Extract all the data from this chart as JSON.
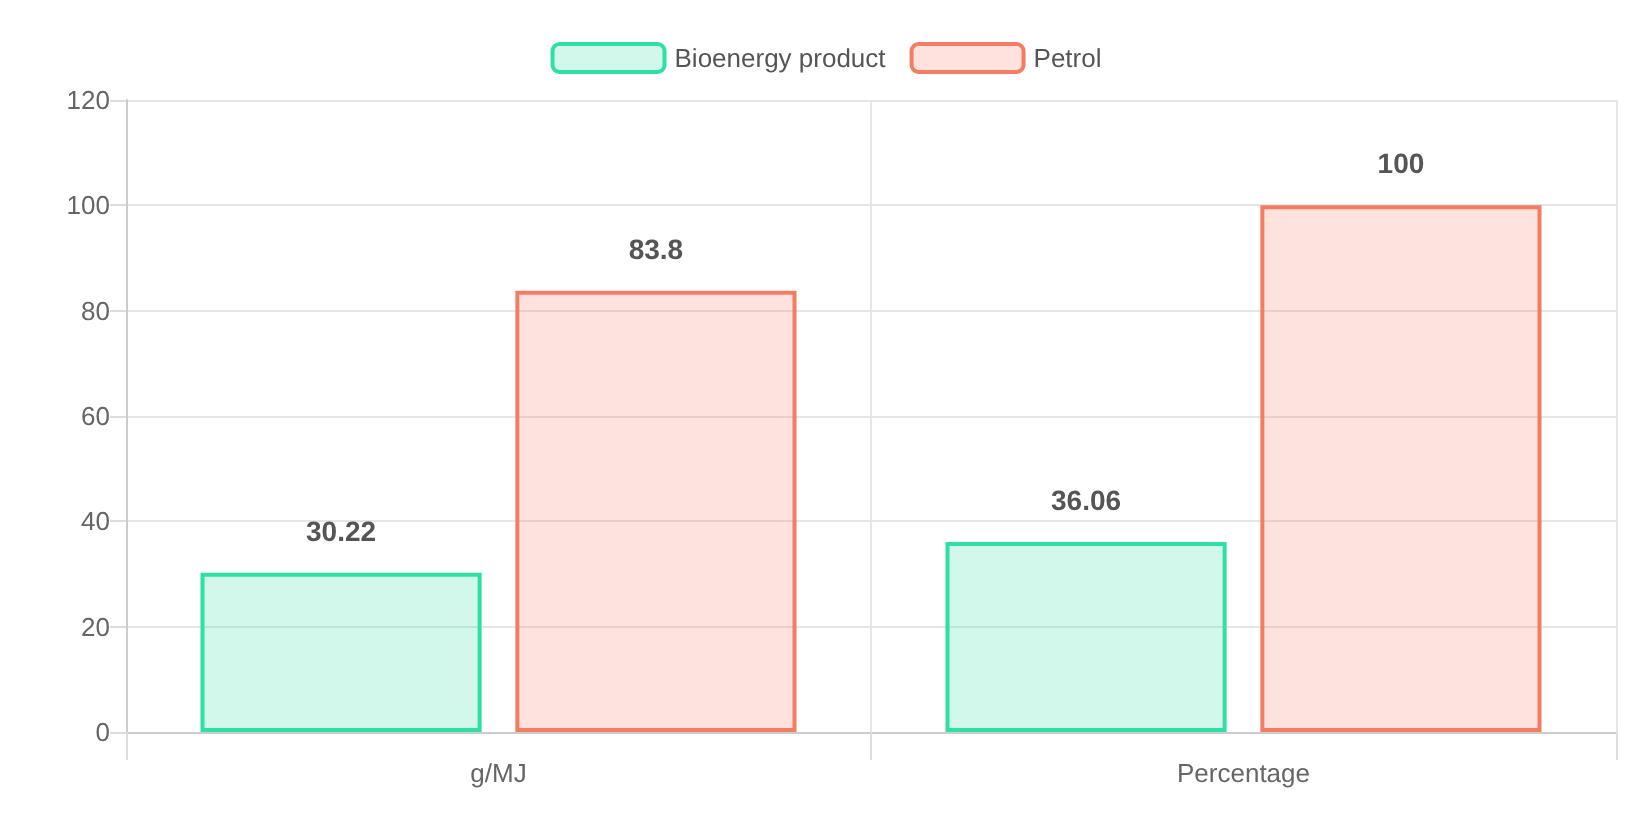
{
  "chart_data": {
    "type": "bar",
    "categories": [
      "g/MJ",
      "Percentage"
    ],
    "series": [
      {
        "name": "Bioenergy product",
        "color": "#2fe0a6",
        "values": [
          30.22,
          36.06
        ]
      },
      {
        "name": "Petrol",
        "color": "#f47c62",
        "values": [
          83.8,
          100
        ]
      }
    ],
    "ylim": [
      0,
      120
    ],
    "yticks": [
      0,
      20,
      40,
      60,
      80,
      100,
      120
    ],
    "grid": true,
    "legend": "top",
    "data_labels": true
  }
}
